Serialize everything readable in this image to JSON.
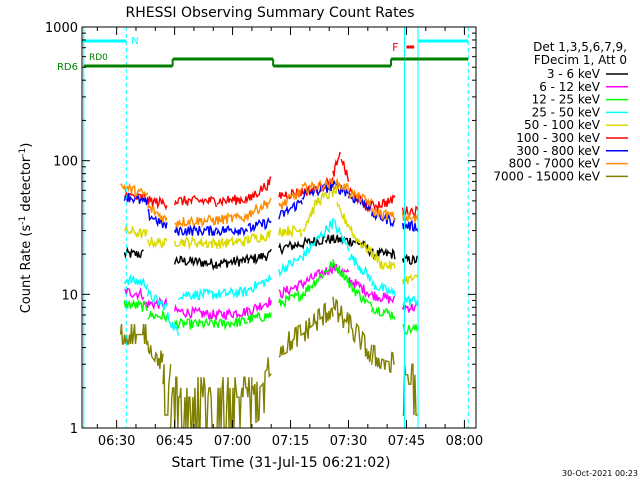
{
  "chart_data": {
    "type": "line",
    "title": "RHESSI Observing Summary Count Rates",
    "xlabel": "Start Time (31-Jul-15 06:21:02)",
    "ylabel_main": "Count Rate (s",
    "ylabel_sup1": "-1",
    "ylabel_mid": " detector",
    "ylabel_sup2": "-1",
    "ylabel_end": ")",
    "y_scale": "log",
    "ylim": [
      1,
      1000
    ],
    "xlim_min": [
      381.033,
      483
    ],
    "x_ticks": [
      {
        "min": 390,
        "label": "06:30"
      },
      {
        "min": 405,
        "label": "06:45"
      },
      {
        "min": 420,
        "label": "07:00"
      },
      {
        "min": 435,
        "label": "07:15"
      },
      {
        "min": 450,
        "label": "07:30"
      },
      {
        "min": 465,
        "label": "07:45"
      },
      {
        "min": 480,
        "label": "08:00"
      }
    ],
    "y_ticks": [
      {
        "value": 1,
        "label": "1"
      },
      {
        "value": 10,
        "label": "10"
      },
      {
        "value": 100,
        "label": "100"
      },
      {
        "value": 1000,
        "label": "1000"
      }
    ],
    "legend": {
      "header": [
        "Det 1,3,5,6,7,9,",
        "FDecim 1, Att 0"
      ],
      "placement": "right"
    },
    "series": [
      {
        "name": "3 - 6 keV",
        "color": "#000000",
        "segments": [
          {
            "x": [
              392,
              397
            ],
            "y": [
              20,
              20
            ]
          },
          {
            "x": [
              405,
              416
            ],
            "y": [
              18,
              17
            ]
          },
          {
            "x": [
              416,
              424
            ],
            "y": [
              17,
              18
            ]
          },
          {
            "x": [
              424,
              430
            ],
            "y": [
              18,
              20
            ]
          },
          {
            "x": [
              432,
              444
            ],
            "y": [
              22,
              26
            ]
          },
          {
            "x": [
              444,
              452
            ],
            "y": [
              26,
              25
            ]
          },
          {
            "x": [
              452,
              456
            ],
            "y": [
              25,
              21
            ]
          },
          {
            "x": [
              456,
              462
            ],
            "y": [
              20,
              20
            ]
          },
          {
            "x": [
              464,
              468
            ],
            "y": [
              18,
              18
            ]
          }
        ]
      },
      {
        "name": "6 - 12 keV",
        "color": "#ff00ff",
        "segments": [
          {
            "x": [
              392,
              397
            ],
            "y": [
              10.5,
              10
            ]
          },
          {
            "x": [
              397,
              403
            ],
            "y": [
              8.5,
              8.5
            ]
          },
          {
            "x": [
              405,
              416
            ],
            "y": [
              7.5,
              7
            ]
          },
          {
            "x": [
              416,
              424
            ],
            "y": [
              7,
              7.5
            ]
          },
          {
            "x": [
              424,
              430
            ],
            "y": [
              7.5,
              9
            ]
          },
          {
            "x": [
              432,
              438
            ],
            "y": [
              10,
              12
            ]
          },
          {
            "x": [
              438,
              446
            ],
            "y": [
              12,
              16
            ]
          },
          {
            "x": [
              446,
              450
            ],
            "y": [
              16,
              14
            ]
          },
          {
            "x": [
              450,
              456
            ],
            "y": [
              13,
              10
            ]
          },
          {
            "x": [
              456,
              462
            ],
            "y": [
              10,
              9
            ]
          },
          {
            "x": [
              464,
              468
            ],
            "y": [
              8,
              8
            ]
          }
        ]
      },
      {
        "name": "12 - 25 keV",
        "color": "#00ff00",
        "segments": [
          {
            "x": [
              392,
              398
            ],
            "y": [
              8.5,
              8
            ]
          },
          {
            "x": [
              398,
              403
            ],
            "y": [
              7,
              6.8
            ]
          },
          {
            "x": [
              405,
              416
            ],
            "y": [
              6,
              6
            ]
          },
          {
            "x": [
              416,
              424
            ],
            "y": [
              6,
              6.3
            ]
          },
          {
            "x": [
              424,
              430
            ],
            "y": [
              6.5,
              7
            ]
          },
          {
            "x": [
              432,
              438
            ],
            "y": [
              8.5,
              10
            ]
          },
          {
            "x": [
              438,
              446
            ],
            "y": [
              10,
              17
            ]
          },
          {
            "x": [
              446,
              450
            ],
            "y": [
              17,
              13
            ]
          },
          {
            "x": [
              450,
              456
            ],
            "y": [
              12,
              8
            ]
          },
          {
            "x": [
              456,
              462
            ],
            "y": [
              8,
              7
            ]
          },
          {
            "x": [
              464,
              468
            ],
            "y": [
              5.5,
              5.5
            ]
          }
        ]
      },
      {
        "name": "25 - 50 keV",
        "color": "#00ffff",
        "segments": [
          {
            "x": [
              392,
              398
            ],
            "y": [
              13,
              12
            ]
          },
          {
            "x": [
              398,
              403
            ],
            "y": [
              10,
              8
            ]
          },
          {
            "x": [
              403,
              406
            ],
            "y": [
              7,
              5
            ]
          },
          {
            "x": [
              406,
              416
            ],
            "y": [
              10,
              10
            ]
          },
          {
            "x": [
              416,
              424
            ],
            "y": [
              10,
              10.5
            ]
          },
          {
            "x": [
              424,
              430
            ],
            "y": [
              11,
              13
            ]
          },
          {
            "x": [
              432,
              438
            ],
            "y": [
              15,
              19
            ]
          },
          {
            "x": [
              438,
              446
            ],
            "y": [
              19,
              35
            ]
          },
          {
            "x": [
              446,
              450
            ],
            "y": [
              35,
              22
            ]
          },
          {
            "x": [
              450,
              456
            ],
            "y": [
              20,
              13
            ]
          },
          {
            "x": [
              456,
              462
            ],
            "y": [
              12,
              10
            ]
          },
          {
            "x": [
              464,
              468
            ],
            "y": [
              9,
              9
            ]
          }
        ]
      },
      {
        "name": "50 - 100 keV",
        "color": "#d9d900",
        "segments": [
          {
            "x": [
              392,
              398
            ],
            "y": [
              30,
              28
            ]
          },
          {
            "x": [
              398,
              403
            ],
            "y": [
              25,
              24
            ]
          },
          {
            "x": [
              405,
              416
            ],
            "y": [
              25,
              24
            ]
          },
          {
            "x": [
              416,
              424
            ],
            "y": [
              24,
              25
            ]
          },
          {
            "x": [
              424,
              430
            ],
            "y": [
              26,
              28
            ]
          },
          {
            "x": [
              432,
              438
            ],
            "y": [
              30,
              30
            ]
          },
          {
            "x": [
              438,
              442
            ],
            "y": [
              30,
              50
            ]
          },
          {
            "x": [
              442,
              447
            ],
            "y": [
              50,
              60
            ]
          },
          {
            "x": [
              447,
              451
            ],
            "y": [
              45,
              30
            ]
          },
          {
            "x": [
              451,
              458
            ],
            "y": [
              28,
              18
            ]
          },
          {
            "x": [
              458,
              462
            ],
            "y": [
              17,
              16
            ]
          },
          {
            "x": [
              464,
              468
            ],
            "y": [
              13,
              13
            ]
          }
        ]
      },
      {
        "name": "100 - 300 keV",
        "color": "#ff0000",
        "segments": [
          {
            "x": [
              392,
              398
            ],
            "y": [
              55,
              52
            ]
          },
          {
            "x": [
              398,
              403
            ],
            "y": [
              50,
              48
            ]
          },
          {
            "x": [
              405,
              416
            ],
            "y": [
              50,
              50
            ]
          },
          {
            "x": [
              416,
              425
            ],
            "y": [
              50,
              52
            ]
          },
          {
            "x": [
              425,
              430
            ],
            "y": [
              54,
              70
            ]
          },
          {
            "x": [
              432,
              440
            ],
            "y": [
              55,
              60
            ]
          },
          {
            "x": [
              440,
              446
            ],
            "y": [
              60,
              70
            ]
          },
          {
            "x": [
              446,
              448
            ],
            "y": [
              80,
              110
            ]
          },
          {
            "x": [
              448,
              450
            ],
            "y": [
              110,
              70
            ]
          },
          {
            "x": [
              450,
              455
            ],
            "y": [
              60,
              45
            ]
          },
          {
            "x": [
              455,
              461
            ],
            "y": [
              45,
              50
            ]
          },
          {
            "x": [
              461,
              462
            ],
            "y": [
              50,
              55
            ]
          },
          {
            "x": [
              464,
              468
            ],
            "y": [
              42,
              42
            ]
          }
        ]
      },
      {
        "name": "300 - 800 keV",
        "color": "#0000ff",
        "segments": [
          {
            "x": [
              392,
              398
            ],
            "y": [
              55,
              48
            ]
          },
          {
            "x": [
              398,
              403
            ],
            "y": [
              40,
              32
            ]
          },
          {
            "x": [
              405,
              416
            ],
            "y": [
              30,
              30
            ]
          },
          {
            "x": [
              416,
              424
            ],
            "y": [
              30,
              31
            ]
          },
          {
            "x": [
              424,
              430
            ],
            "y": [
              31,
              35
            ]
          },
          {
            "x": [
              432,
              438
            ],
            "y": [
              38,
              50
            ]
          },
          {
            "x": [
              438,
              446
            ],
            "y": [
              55,
              65
            ]
          },
          {
            "x": [
              446,
              450
            ],
            "y": [
              65,
              58
            ]
          },
          {
            "x": [
              450,
              456
            ],
            "y": [
              55,
              45
            ]
          },
          {
            "x": [
              456,
              462
            ],
            "y": [
              40,
              35
            ]
          },
          {
            "x": [
              464,
              468
            ],
            "y": [
              33,
              32
            ]
          }
        ]
      },
      {
        "name": "800 - 7000 keV",
        "color": "#ff8c00",
        "segments": [
          {
            "x": [
              391,
              398
            ],
            "y": [
              65,
              55
            ]
          },
          {
            "x": [
              398,
              403
            ],
            "y": [
              45,
              36
            ]
          },
          {
            "x": [
              405,
              416
            ],
            "y": [
              35,
              36
            ]
          },
          {
            "x": [
              416,
              424
            ],
            "y": [
              36,
              38
            ]
          },
          {
            "x": [
              424,
              430
            ],
            "y": [
              40,
              50
            ]
          },
          {
            "x": [
              432,
              438
            ],
            "y": [
              45,
              60
            ]
          },
          {
            "x": [
              438,
              446
            ],
            "y": [
              62,
              68
            ]
          },
          {
            "x": [
              446,
              450
            ],
            "y": [
              68,
              62
            ]
          },
          {
            "x": [
              450,
              456
            ],
            "y": [
              58,
              48
            ]
          },
          {
            "x": [
              456,
              462
            ],
            "y": [
              42,
              38
            ]
          },
          {
            "x": [
              464,
              468
            ],
            "y": [
              38,
              36
            ]
          }
        ]
      },
      {
        "name": "7000 - 15000 keV",
        "color": "#808000",
        "segments": [
          {
            "x": [
              391,
              398
            ],
            "y": [
              5,
              5
            ]
          },
          {
            "x": [
              398,
              402
            ],
            "y": [
              4.5,
              3
            ]
          },
          {
            "x": [
              402,
              404
            ],
            "y": [
              2.5,
              2.5
            ]
          },
          {
            "x": [
              404,
              416
            ],
            "y": [
              2,
              2
            ]
          },
          {
            "x": [
              416,
              425
            ],
            "y": [
              2,
              2
            ]
          },
          {
            "x": [
              425,
              430
            ],
            "y": [
              2,
              3
            ]
          },
          {
            "x": [
              432,
              438
            ],
            "y": [
              4,
              5
            ]
          },
          {
            "x": [
              438,
              446
            ],
            "y": [
              5,
              8
            ]
          },
          {
            "x": [
              446,
              450
            ],
            "y": [
              8,
              6
            ]
          },
          {
            "x": [
              450,
              456
            ],
            "y": [
              6,
              3.5
            ]
          },
          {
            "x": [
              456,
              462
            ],
            "y": [
              3.5,
              3
            ]
          },
          {
            "x": [
              464,
              468
            ],
            "y": [
              2.5,
              2.5
            ]
          }
        ]
      }
    ],
    "annotations": {
      "night_label": "N",
      "flare_label": "F",
      "rd0_label": "RD0",
      "rd6_label": "RD6",
      "date_stamp": "30-Oct-2021 00:23"
    },
    "night_intervals": [
      [
        381.033,
        392.5
      ],
      [
        468,
        481
      ]
    ],
    "saa_lines": [
      381.5,
      392.5,
      464.5,
      468,
      481
    ],
    "flare_interval": [
      465,
      467
    ],
    "rd6_intervals": [
      [
        381.5,
        404.5
      ],
      [
        404.5,
        430.5
      ],
      [
        430.5,
        461
      ],
      [
        461,
        481
      ]
    ]
  }
}
